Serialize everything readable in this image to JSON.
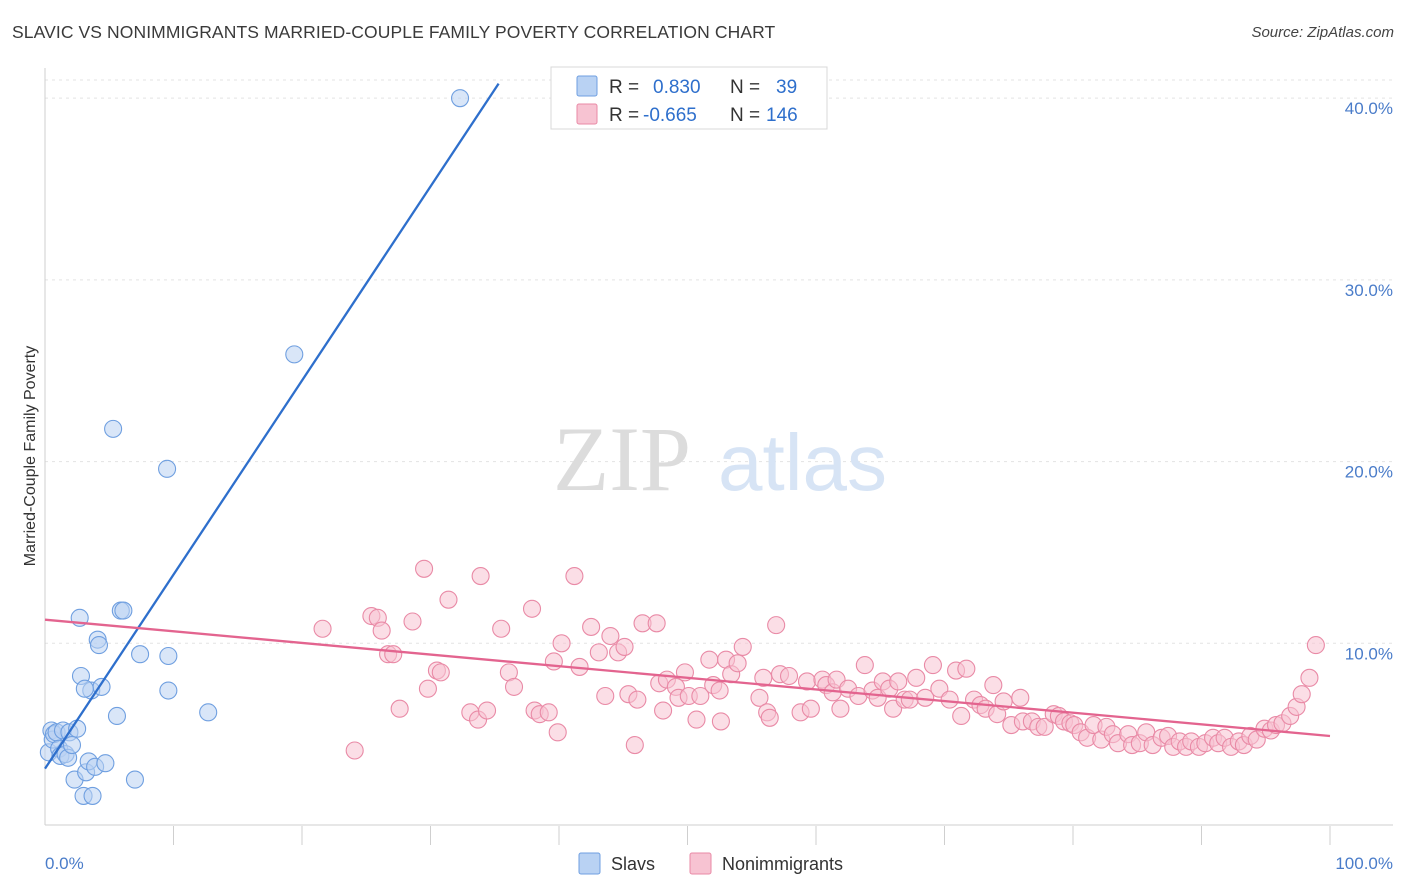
{
  "title": "SLAVIC VS NONIMMIGRANTS MARRIED-COUPLE FAMILY POVERTY CORRELATION CHART",
  "source": "Source: ZipAtlas.com",
  "watermark": {
    "zip": "ZIP",
    "atlas": "atlas"
  },
  "colors": {
    "slavs_fill": "#b9d2f3",
    "slavs_stroke": "#6f9fe0",
    "slavs_line": "#2e6fcc",
    "nonimm_fill": "#f7c3d2",
    "nonimm_stroke": "#e98aa6",
    "nonimm_line": "#e3648f",
    "tick_text": "#4a7cc9"
  },
  "legend": {
    "rows": [
      {
        "r_label": "R =",
        "r_value": "0.830",
        "n_label": "N =",
        "n_value": "39"
      },
      {
        "r_label": "R =",
        "r_value": "-0.665",
        "n_label": "N =",
        "n_value": "146"
      }
    ]
  },
  "chart_data": {
    "type": "scatter",
    "title": "SLAVIC VS NONIMMIGRANTS MARRIED-COUPLE FAMILY POVERTY CORRELATION CHART",
    "ylabel": "Married-Couple Family Poverty",
    "xlabel": "",
    "xlim": [
      0,
      100
    ],
    "ylim": [
      0,
      41
    ],
    "x_tick_labels": [
      "0.0%",
      "100.0%"
    ],
    "y_ticks": [
      10,
      20,
      30,
      40
    ],
    "y_tick_labels": [
      "10.0%",
      "20.0%",
      "30.0%",
      "40.0%"
    ],
    "grid": true,
    "legend_position": "top-center",
    "series": [
      {
        "name": "Slavs",
        "r": 0.83,
        "n": 39,
        "trend": {
          "x": [
            0,
            35.3
          ],
          "y": [
            3.1,
            40.8
          ]
        },
        "points": [
          [
            0.3,
            4.0
          ],
          [
            0.5,
            5.2
          ],
          [
            0.6,
            4.7
          ],
          [
            0.7,
            5.0
          ],
          [
            0.9,
            5.1
          ],
          [
            1.1,
            4.2
          ],
          [
            1.2,
            3.8
          ],
          [
            1.4,
            5.2
          ],
          [
            1.6,
            3.9
          ],
          [
            1.8,
            3.7
          ],
          [
            1.9,
            5.1
          ],
          [
            2.1,
            4.4
          ],
          [
            2.3,
            2.5
          ],
          [
            2.5,
            5.3
          ],
          [
            2.7,
            11.4
          ],
          [
            2.8,
            8.2
          ],
          [
            3.0,
            1.6
          ],
          [
            3.2,
            2.9
          ],
          [
            3.4,
            3.5
          ],
          [
            3.6,
            7.4
          ],
          [
            3.7,
            1.6
          ],
          [
            3.9,
            3.2
          ],
          [
            4.1,
            10.2
          ],
          [
            4.2,
            9.9
          ],
          [
            4.4,
            7.6
          ],
          [
            4.7,
            3.4
          ],
          [
            5.3,
            21.8
          ],
          [
            5.6,
            6.0
          ],
          [
            5.9,
            11.8
          ],
          [
            6.1,
            11.8
          ],
          [
            7.0,
            2.5
          ],
          [
            7.4,
            9.4
          ],
          [
            9.6,
            9.3
          ],
          [
            9.5,
            19.6
          ],
          [
            9.6,
            7.4
          ],
          [
            12.7,
            6.2
          ],
          [
            19.4,
            25.9
          ],
          [
            32.3,
            40.0
          ],
          [
            3.1,
            7.5
          ]
        ]
      },
      {
        "name": "Nonimmigrants",
        "r": -0.665,
        "n": 146,
        "trend": {
          "x": [
            0,
            100
          ],
          "y": [
            11.3,
            4.9
          ]
        },
        "points": [
          [
            21.6,
            10.8
          ],
          [
            24.1,
            4.1
          ],
          [
            25.4,
            11.5
          ],
          [
            25.9,
            11.4
          ],
          [
            26.2,
            10.7
          ],
          [
            26.7,
            9.4
          ],
          [
            27.1,
            9.4
          ],
          [
            27.6,
            6.4
          ],
          [
            28.6,
            11.2
          ],
          [
            29.5,
            14.1
          ],
          [
            29.8,
            7.5
          ],
          [
            30.5,
            8.5
          ],
          [
            30.8,
            8.4
          ],
          [
            31.4,
            12.4
          ],
          [
            33.1,
            6.2
          ],
          [
            33.7,
            5.8
          ],
          [
            33.9,
            13.7
          ],
          [
            34.4,
            6.3
          ],
          [
            35.5,
            10.8
          ],
          [
            36.1,
            8.4
          ],
          [
            36.5,
            7.6
          ],
          [
            37.9,
            11.9
          ],
          [
            38.1,
            6.3
          ],
          [
            38.5,
            6.1
          ],
          [
            39.6,
            9.0
          ],
          [
            39.9,
            5.1
          ],
          [
            40.2,
            10.0
          ],
          [
            41.2,
            13.7
          ],
          [
            41.6,
            8.7
          ],
          [
            42.5,
            10.9
          ],
          [
            43.1,
            9.5
          ],
          [
            43.6,
            7.1
          ],
          [
            44.0,
            10.4
          ],
          [
            44.6,
            9.5
          ],
          [
            45.1,
            9.8
          ],
          [
            45.4,
            7.2
          ],
          [
            45.9,
            4.4
          ],
          [
            46.1,
            6.9
          ],
          [
            46.5,
            11.1
          ],
          [
            47.6,
            11.1
          ],
          [
            47.8,
            7.8
          ],
          [
            48.4,
            8.0
          ],
          [
            49.1,
            7.6
          ],
          [
            49.3,
            7.0
          ],
          [
            49.8,
            8.4
          ],
          [
            50.1,
            7.1
          ],
          [
            50.7,
            5.8
          ],
          [
            51.0,
            7.1
          ],
          [
            51.7,
            9.1
          ],
          [
            52.0,
            7.7
          ],
          [
            52.5,
            7.4
          ],
          [
            53.0,
            9.1
          ],
          [
            53.4,
            8.3
          ],
          [
            53.9,
            8.9
          ],
          [
            54.3,
            9.8
          ],
          [
            55.6,
            7.0
          ],
          [
            55.9,
            8.1
          ],
          [
            56.2,
            6.2
          ],
          [
            56.9,
            11.0
          ],
          [
            57.2,
            8.3
          ],
          [
            57.9,
            8.2
          ],
          [
            58.8,
            6.2
          ],
          [
            59.3,
            7.9
          ],
          [
            59.6,
            6.4
          ],
          [
            60.5,
            8.0
          ],
          [
            60.8,
            7.7
          ],
          [
            61.3,
            7.3
          ],
          [
            61.6,
            8.0
          ],
          [
            61.9,
            6.4
          ],
          [
            62.5,
            7.5
          ],
          [
            63.3,
            7.1
          ],
          [
            63.8,
            8.8
          ],
          [
            64.4,
            7.4
          ],
          [
            64.8,
            7.0
          ],
          [
            65.2,
            7.9
          ],
          [
            65.7,
            7.5
          ],
          [
            66.0,
            6.4
          ],
          [
            66.4,
            7.9
          ],
          [
            66.9,
            6.9
          ],
          [
            67.3,
            6.9
          ],
          [
            67.8,
            8.1
          ],
          [
            68.5,
            7.0
          ],
          [
            69.1,
            8.8
          ],
          [
            69.6,
            7.5
          ],
          [
            70.4,
            6.9
          ],
          [
            70.9,
            8.5
          ],
          [
            71.3,
            6.0
          ],
          [
            71.7,
            8.6
          ],
          [
            72.3,
            6.9
          ],
          [
            72.8,
            6.6
          ],
          [
            73.2,
            6.4
          ],
          [
            73.8,
            7.7
          ],
          [
            74.1,
            6.1
          ],
          [
            74.6,
            6.8
          ],
          [
            75.2,
            5.5
          ],
          [
            75.9,
            7.0
          ],
          [
            76.1,
            5.7
          ],
          [
            76.8,
            5.7
          ],
          [
            77.3,
            5.4
          ],
          [
            77.8,
            5.4
          ],
          [
            78.5,
            6.1
          ],
          [
            78.9,
            6.0
          ],
          [
            79.3,
            5.7
          ],
          [
            79.8,
            5.6
          ],
          [
            80.1,
            5.5
          ],
          [
            80.6,
            5.1
          ],
          [
            81.1,
            4.8
          ],
          [
            81.6,
            5.5
          ],
          [
            82.2,
            4.7
          ],
          [
            82.6,
            5.4
          ],
          [
            83.1,
            5.0
          ],
          [
            83.5,
            4.5
          ],
          [
            84.3,
            5.0
          ],
          [
            84.6,
            4.4
          ],
          [
            85.2,
            4.5
          ],
          [
            85.7,
            5.1
          ],
          [
            86.2,
            4.4
          ],
          [
            86.9,
            4.8
          ],
          [
            87.4,
            4.9
          ],
          [
            87.8,
            4.3
          ],
          [
            88.3,
            4.6
          ],
          [
            88.8,
            4.3
          ],
          [
            89.2,
            4.6
          ],
          [
            89.8,
            4.3
          ],
          [
            90.3,
            4.5
          ],
          [
            90.9,
            4.8
          ],
          [
            91.3,
            4.5
          ],
          [
            91.8,
            4.8
          ],
          [
            92.3,
            4.3
          ],
          [
            92.9,
            4.6
          ],
          [
            93.3,
            4.4
          ],
          [
            93.8,
            4.9
          ],
          [
            94.3,
            4.7
          ],
          [
            94.9,
            5.3
          ],
          [
            95.4,
            5.2
          ],
          [
            95.8,
            5.5
          ],
          [
            96.3,
            5.6
          ],
          [
            96.9,
            6.0
          ],
          [
            97.4,
            6.5
          ],
          [
            97.8,
            7.2
          ],
          [
            98.4,
            8.1
          ],
          [
            98.9,
            9.9
          ],
          [
            39.2,
            6.2
          ],
          [
            48.1,
            6.3
          ],
          [
            52.6,
            5.7
          ],
          [
            56.4,
            5.9
          ]
        ]
      }
    ]
  },
  "bottom_legend": [
    "Slavs",
    "Nonimmigrants"
  ]
}
